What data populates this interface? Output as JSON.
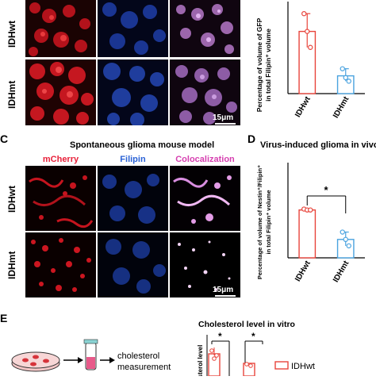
{
  "panelA": {
    "row_labels": [
      "IDHwt",
      "IDHmt"
    ],
    "scale_label": "15μm"
  },
  "panelB": {
    "ylabel_line1": "Percentage of volume of GFP",
    "ylabel_line2": "in total Filipin⁺ volume"
  },
  "panelC": {
    "letter": "C",
    "title": "Spontaneous glioma mouse model",
    "channels": [
      "mCherry",
      "Filipin",
      "Colocalization"
    ],
    "row_labels": [
      "IDHwt",
      "IDHmt"
    ],
    "scale_label": "15μm",
    "colors": {
      "mCherry": "#e8213a",
      "Filipin": "#2a62d6",
      "Colocalization": "#d63fb0"
    }
  },
  "panelD": {
    "letter": "D",
    "title": "Virus-induced glioma in vivo",
    "ylabel_line1": "Percentage of volume of Nestin⁺/Filipin⁺",
    "ylabel_line2": "in total Filipin⁺ volume",
    "significance": "*"
  },
  "panelE": {
    "letter": "E",
    "flow_label_line1": "cholesterol",
    "flow_label_line2": "measurement",
    "chart_title": "Cholesterol level in vitro",
    "ylabel": "cholesterol level",
    "legend": "IDHwt",
    "significance": [
      "*",
      "*"
    ]
  },
  "chart_data": [
    {
      "type": "bar",
      "panel": "B",
      "categories": [
        "IDHwt",
        "IDHmt"
      ],
      "values": [
        0.85,
        0.6
      ],
      "points": [
        [
          0.95,
          0.85,
          0.76
        ],
        [
          0.64,
          0.59,
          0.57
        ]
      ],
      "colors": [
        "#e8453c",
        "#4aa3df"
      ],
      "ylim": [
        0.5,
        1.0
      ]
    },
    {
      "type": "bar",
      "panel": "D",
      "categories": [
        "IDHwt",
        "IDHmt"
      ],
      "values": [
        0.52,
        0.2
      ],
      "points": [
        [
          0.53,
          0.52,
          0.52
        ],
        [
          0.28,
          0.2,
          0.13
        ]
      ],
      "colors": [
        "#e8453c",
        "#4aa3df"
      ],
      "ylim": [
        0,
        1.0
      ]
    }
  ]
}
